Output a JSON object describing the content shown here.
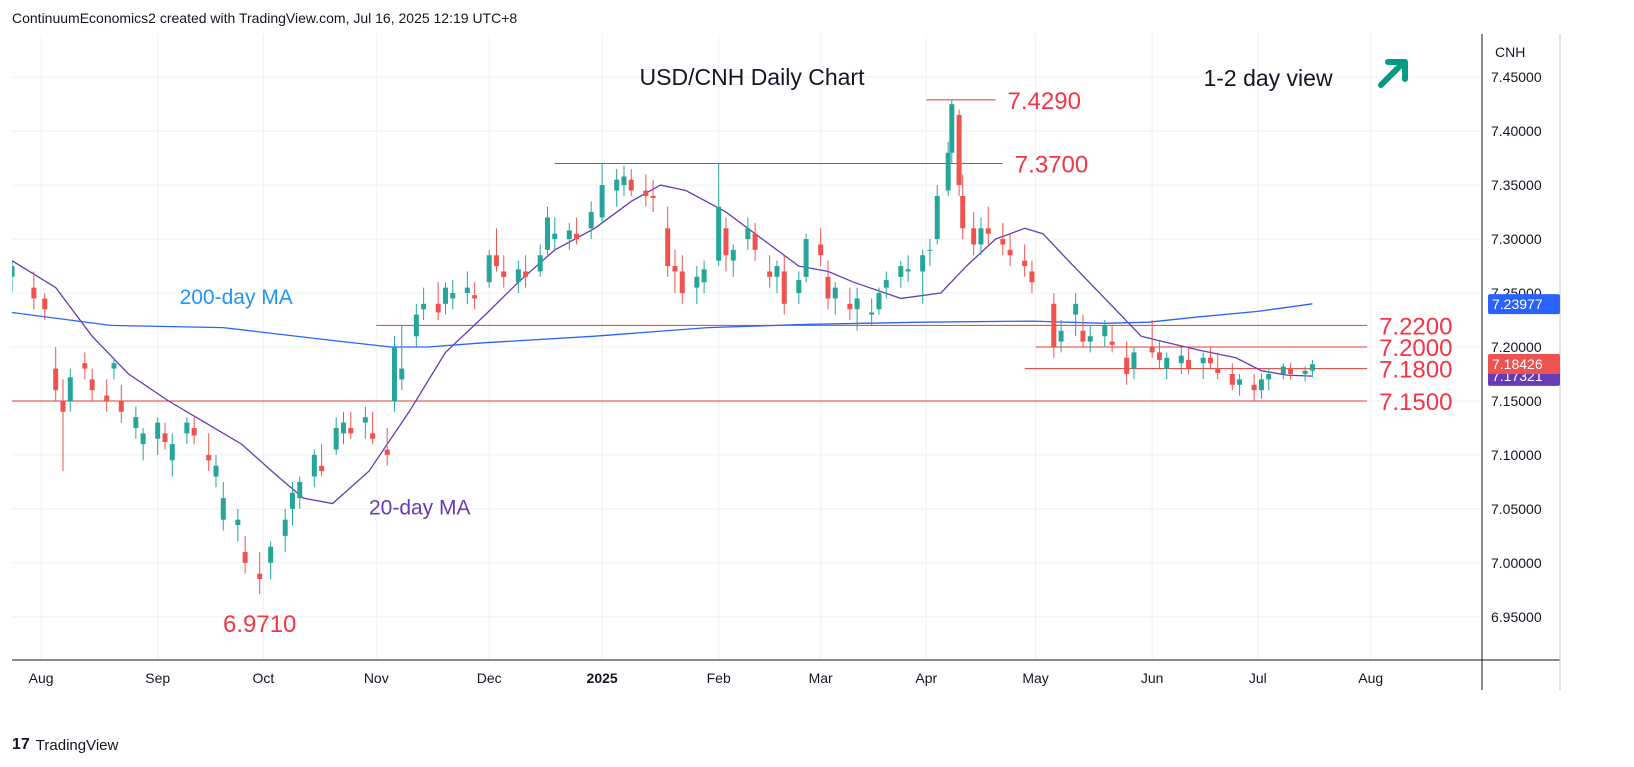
{
  "credit": "ContinuumEconomics2 created with TradingView.com, Jul 16, 2025 12:19 UTC+8",
  "brand": "TradingView",
  "brand_logo": "17",
  "colors": {
    "up": "#26a69a",
    "down": "#ef5350",
    "ma20": "#673ab7",
    "ma200": "#2962ff",
    "level": "#e53935",
    "label_red": "#f23645",
    "arrow": "#089981",
    "grid": "#eef0f3",
    "axis_text": "#131722"
  },
  "chart_data": {
    "type": "candlestick",
    "title": "USD/CNH Daily Chart",
    "view": "1-2 day view",
    "view_icon": "arrow-up-right-icon",
    "currency": "CNH",
    "price_tag_last": "7.18426",
    "price_tag_ma": "7.17321",
    "price_tag_ma200": "7.23977",
    "ylim": [
      6.91,
      7.49
    ],
    "y_ticks": [
      "7.45000",
      "7.40000",
      "7.35000",
      "7.30000",
      "7.25000",
      "7.20000",
      "7.15000",
      "7.10000",
      "7.05000",
      "7.00000",
      "6.95000"
    ],
    "x_start": "2024-07-24",
    "x_end": "2025-08-31",
    "x_ticks": [
      {
        "label": "Aug",
        "date": "2024-08-01",
        "bold": false
      },
      {
        "label": "Sep",
        "date": "2024-09-02",
        "bold": false
      },
      {
        "label": "Oct",
        "date": "2024-10-01",
        "bold": false
      },
      {
        "label": "Nov",
        "date": "2024-11-01",
        "bold": false
      },
      {
        "label": "Dec",
        "date": "2024-12-02",
        "bold": false
      },
      {
        "label": "2025",
        "date": "2025-01-02",
        "bold": true
      },
      {
        "label": "Feb",
        "date": "2025-02-03",
        "bold": false
      },
      {
        "label": "Mar",
        "date": "2025-03-03",
        "bold": false
      },
      {
        "label": "Apr",
        "date": "2025-04-01",
        "bold": false
      },
      {
        "label": "May",
        "date": "2025-05-01",
        "bold": false
      },
      {
        "label": "Jun",
        "date": "2025-06-02",
        "bold": false
      },
      {
        "label": "Jul",
        "date": "2025-07-01",
        "bold": false
      },
      {
        "label": "Aug",
        "date": "2025-08-01",
        "bold": false
      }
    ],
    "levels": [
      {
        "label": "7.4290",
        "value": 7.429,
        "from": "2025-04-01",
        "to": "2025-04-20"
      },
      {
        "label": "7.3700",
        "value": 7.37,
        "from": "2024-12-20",
        "to": "2025-04-22"
      },
      {
        "label": "7.2200",
        "value": 7.22,
        "from": "2024-11-01",
        "to": "2025-07-31"
      },
      {
        "label": "7.2000",
        "value": 7.2,
        "from": "2025-05-01",
        "to": "2025-07-31"
      },
      {
        "label": "7.1800",
        "value": 7.18,
        "from": "2025-04-28",
        "to": "2025-07-31"
      },
      {
        "label": "7.1500",
        "value": 7.15,
        "from": "2024-07-24",
        "to": "2025-07-31"
      }
    ],
    "point_labels": [
      {
        "label": "6.9710",
        "value": 6.971,
        "date": "2024-09-30"
      }
    ],
    "series": [
      {
        "name": "20-day MA",
        "points": [
          [
            "2024-07-24",
            7.28
          ],
          [
            "2024-08-05",
            7.255
          ],
          [
            "2024-08-15",
            7.21
          ],
          [
            "2024-08-25",
            7.175
          ],
          [
            "2024-09-05",
            7.15
          ],
          [
            "2024-09-15",
            7.13
          ],
          [
            "2024-09-25",
            7.11
          ],
          [
            "2024-10-05",
            7.08
          ],
          [
            "2024-10-12",
            7.06
          ],
          [
            "2024-10-20",
            7.055
          ],
          [
            "2024-10-30",
            7.085
          ],
          [
            "2024-11-10",
            7.14
          ],
          [
            "2024-11-20",
            7.195
          ],
          [
            "2024-12-01",
            7.23
          ],
          [
            "2024-12-10",
            7.26
          ],
          [
            "2024-12-20",
            7.29
          ],
          [
            "2024-12-31",
            7.31
          ],
          [
            "2025-01-10",
            7.335
          ],
          [
            "2025-01-18",
            7.35
          ],
          [
            "2025-01-25",
            7.345
          ],
          [
            "2025-02-05",
            7.325
          ],
          [
            "2025-02-15",
            7.3
          ],
          [
            "2025-02-25",
            7.275
          ],
          [
            "2025-03-05",
            7.27
          ],
          [
            "2025-03-12",
            7.26
          ],
          [
            "2025-03-25",
            7.245
          ],
          [
            "2025-04-05",
            7.25
          ],
          [
            "2025-04-12",
            7.275
          ],
          [
            "2025-04-20",
            7.3
          ],
          [
            "2025-04-28",
            7.31
          ],
          [
            "2025-05-03",
            7.305
          ],
          [
            "2025-05-10",
            7.28
          ],
          [
            "2025-05-20",
            7.245
          ],
          [
            "2025-05-30",
            7.21
          ],
          [
            "2025-06-05",
            7.205
          ],
          [
            "2025-06-15",
            7.197
          ],
          [
            "2025-06-25",
            7.19
          ],
          [
            "2025-07-02",
            7.178
          ],
          [
            "2025-07-09",
            7.174
          ],
          [
            "2025-07-16",
            7.173
          ]
        ]
      },
      {
        "name": "200-day MA",
        "points": [
          [
            "2024-07-24",
            7.232
          ],
          [
            "2024-08-20",
            7.22
          ],
          [
            "2024-09-20",
            7.218
          ],
          [
            "2024-10-20",
            7.206
          ],
          [
            "2024-11-05",
            7.2
          ],
          [
            "2024-11-15",
            7.2
          ],
          [
            "2024-12-01",
            7.204
          ],
          [
            "2024-12-31",
            7.21
          ],
          [
            "2025-01-31",
            7.218
          ],
          [
            "2025-02-28",
            7.221
          ],
          [
            "2025-03-31",
            7.223
          ],
          [
            "2025-04-30",
            7.224
          ],
          [
            "2025-05-20",
            7.222
          ],
          [
            "2025-06-01",
            7.223
          ],
          [
            "2025-06-15",
            7.228
          ],
          [
            "2025-07-01",
            7.233
          ],
          [
            "2025-07-16",
            7.24
          ]
        ]
      }
    ],
    "candles": [
      [
        "2024-07-24",
        7.265,
        7.28,
        7.25,
        7.275
      ],
      [
        "2024-07-30",
        7.255,
        7.27,
        7.235,
        7.245
      ],
      [
        "2024-08-02",
        7.245,
        7.25,
        7.225,
        7.235
      ],
      [
        "2024-08-05",
        7.18,
        7.2,
        7.15,
        7.16
      ],
      [
        "2024-08-07",
        7.15,
        7.17,
        7.085,
        7.14
      ],
      [
        "2024-08-09",
        7.15,
        7.18,
        7.14,
        7.172
      ],
      [
        "2024-08-13",
        7.185,
        7.195,
        7.17,
        7.18
      ],
      [
        "2024-08-15",
        7.17,
        7.18,
        7.15,
        7.16
      ],
      [
        "2024-08-19",
        7.155,
        7.17,
        7.14,
        7.15
      ],
      [
        "2024-08-21",
        7.18,
        7.19,
        7.17,
        7.185
      ],
      [
        "2024-08-23",
        7.15,
        7.165,
        7.13,
        7.14
      ],
      [
        "2024-08-27",
        7.125,
        7.145,
        7.115,
        7.135
      ],
      [
        "2024-08-29",
        7.11,
        7.125,
        7.095,
        7.12
      ],
      [
        "2024-09-02",
        7.115,
        7.135,
        7.1,
        7.13
      ],
      [
        "2024-09-04",
        7.12,
        7.13,
        7.105,
        7.112
      ],
      [
        "2024-09-06",
        7.095,
        7.12,
        7.08,
        7.11
      ],
      [
        "2024-09-10",
        7.12,
        7.135,
        7.11,
        7.13
      ],
      [
        "2024-09-12",
        7.125,
        7.135,
        7.11,
        7.118
      ],
      [
        "2024-09-16",
        7.1,
        7.12,
        7.085,
        7.095
      ],
      [
        "2024-09-18",
        7.08,
        7.1,
        7.07,
        7.09
      ],
      [
        "2024-09-20",
        7.04,
        7.075,
        7.03,
        7.06
      ],
      [
        "2024-09-24",
        7.035,
        7.05,
        7.02,
        7.04
      ],
      [
        "2024-09-26",
        7.01,
        7.025,
        6.99,
        7.0
      ],
      [
        "2024-09-30",
        6.99,
        7.01,
        6.971,
        6.985
      ],
      [
        "2024-10-03",
        7.0,
        7.02,
        6.985,
        7.015
      ],
      [
        "2024-10-07",
        7.025,
        7.05,
        7.01,
        7.04
      ],
      [
        "2024-10-09",
        7.05,
        7.075,
        7.035,
        7.065
      ],
      [
        "2024-10-11",
        7.06,
        7.08,
        7.05,
        7.075
      ],
      [
        "2024-10-15",
        7.08,
        7.105,
        7.07,
        7.1
      ],
      [
        "2024-10-17",
        7.09,
        7.11,
        7.08,
        7.085
      ],
      [
        "2024-10-21",
        7.105,
        7.135,
        7.1,
        7.125
      ],
      [
        "2024-10-23",
        7.12,
        7.14,
        7.11,
        7.13
      ],
      [
        "2024-10-25",
        7.125,
        7.14,
        7.115,
        7.12
      ],
      [
        "2024-10-29",
        7.13,
        7.145,
        7.115,
        7.135
      ],
      [
        "2024-10-31",
        7.12,
        7.14,
        7.11,
        7.115
      ],
      [
        "2024-11-04",
        7.105,
        7.125,
        7.09,
        7.1
      ],
      [
        "2024-11-06",
        7.15,
        7.21,
        7.14,
        7.2
      ],
      [
        "2024-11-08",
        7.17,
        7.22,
        7.16,
        7.18
      ],
      [
        "2024-11-12",
        7.21,
        7.24,
        7.2,
        7.23
      ],
      [
        "2024-11-14",
        7.235,
        7.255,
        7.225,
        7.24
      ],
      [
        "2024-11-18",
        7.24,
        7.26,
        7.225,
        7.232
      ],
      [
        "2024-11-20",
        7.24,
        7.26,
        7.23,
        7.255
      ],
      [
        "2024-11-22",
        7.245,
        7.262,
        7.235,
        7.25
      ],
      [
        "2024-11-26",
        7.25,
        7.27,
        7.24,
        7.255
      ],
      [
        "2024-11-28",
        7.248,
        7.26,
        7.235,
        7.245
      ],
      [
        "2024-12-02",
        7.26,
        7.29,
        7.255,
        7.285
      ],
      [
        "2024-12-04",
        7.285,
        7.31,
        7.27,
        7.275
      ],
      [
        "2024-12-06",
        7.27,
        7.285,
        7.255,
        7.265
      ],
      [
        "2024-12-10",
        7.26,
        7.28,
        7.25,
        7.272
      ],
      [
        "2024-12-12",
        7.27,
        7.285,
        7.255,
        7.265
      ],
      [
        "2024-12-16",
        7.27,
        7.295,
        7.265,
        7.285
      ],
      [
        "2024-12-18",
        7.29,
        7.33,
        7.285,
        7.32
      ],
      [
        "2024-12-20",
        7.3,
        7.32,
        7.29,
        7.305
      ],
      [
        "2024-12-24",
        7.3,
        7.315,
        7.29,
        7.308
      ],
      [
        "2024-12-26",
        7.305,
        7.32,
        7.295,
        7.3
      ],
      [
        "2024-12-30",
        7.31,
        7.335,
        7.3,
        7.325
      ],
      [
        "2025-01-02",
        7.32,
        7.37,
        7.315,
        7.35
      ],
      [
        "2025-01-06",
        7.345,
        7.365,
        7.33,
        7.355
      ],
      [
        "2025-01-08",
        7.35,
        7.368,
        7.34,
        7.358
      ],
      [
        "2025-01-10",
        7.355,
        7.365,
        7.34,
        7.345
      ],
      [
        "2025-01-14",
        7.345,
        7.36,
        7.33,
        7.34
      ],
      [
        "2025-01-16",
        7.34,
        7.355,
        7.325,
        7.338
      ],
      [
        "2025-01-20",
        7.31,
        7.33,
        7.265,
        7.275
      ],
      [
        "2025-01-22",
        7.275,
        7.29,
        7.25,
        7.27
      ],
      [
        "2025-01-24",
        7.27,
        7.285,
        7.24,
        7.25
      ],
      [
        "2025-01-28",
        7.255,
        7.275,
        7.24,
        7.265
      ],
      [
        "2025-01-30",
        7.26,
        7.28,
        7.25,
        7.272
      ],
      [
        "2025-02-03",
        7.28,
        7.37,
        7.275,
        7.33
      ],
      [
        "2025-02-05",
        7.31,
        7.32,
        7.27,
        7.285
      ],
      [
        "2025-02-07",
        7.28,
        7.295,
        7.265,
        7.29
      ],
      [
        "2025-02-11",
        7.3,
        7.32,
        7.29,
        7.31
      ],
      [
        "2025-02-13",
        7.305,
        7.315,
        7.28,
        7.29
      ],
      [
        "2025-02-17",
        7.27,
        7.285,
        7.255,
        7.265
      ],
      [
        "2025-02-19",
        7.265,
        7.28,
        7.25,
        7.275
      ],
      [
        "2025-02-21",
        7.27,
        7.285,
        7.23,
        7.24
      ],
      [
        "2025-02-25",
        7.25,
        7.27,
        7.24,
        7.262
      ],
      [
        "2025-02-27",
        7.265,
        7.305,
        7.26,
        7.3
      ],
      [
        "2025-03-03",
        7.295,
        7.31,
        7.275,
        7.285
      ],
      [
        "2025-03-05",
        7.265,
        7.28,
        7.235,
        7.245
      ],
      [
        "2025-03-07",
        7.245,
        7.26,
        7.23,
        7.255
      ],
      [
        "2025-03-11",
        7.24,
        7.255,
        7.225,
        7.235
      ],
      [
        "2025-03-13",
        7.235,
        7.255,
        7.215,
        7.245
      ],
      [
        "2025-03-17",
        7.23,
        7.245,
        7.22,
        7.232
      ],
      [
        "2025-03-19",
        7.235,
        7.255,
        7.23,
        7.25
      ],
      [
        "2025-03-21",
        7.255,
        7.27,
        7.245,
        7.262
      ],
      [
        "2025-03-25",
        7.265,
        7.28,
        7.255,
        7.275
      ],
      [
        "2025-03-27",
        7.27,
        7.285,
        7.26,
        7.272
      ],
      [
        "2025-03-31",
        7.27,
        7.29,
        7.24,
        7.285
      ],
      [
        "2025-04-02",
        7.29,
        7.3,
        7.275,
        7.29
      ],
      [
        "2025-04-04",
        7.3,
        7.35,
        7.295,
        7.34
      ],
      [
        "2025-04-07",
        7.345,
        7.39,
        7.34,
        7.38
      ],
      [
        "2025-04-08",
        7.38,
        7.429,
        7.37,
        7.425
      ],
      [
        "2025-04-10",
        7.415,
        7.42,
        7.34,
        7.35
      ],
      [
        "2025-04-11",
        7.34,
        7.36,
        7.3,
        7.31
      ],
      [
        "2025-04-14",
        7.31,
        7.325,
        7.285,
        7.295
      ],
      [
        "2025-04-16",
        7.295,
        7.32,
        7.285,
        7.31
      ],
      [
        "2025-04-18",
        7.31,
        7.33,
        7.295,
        7.305
      ],
      [
        "2025-04-22",
        7.3,
        7.315,
        7.285,
        7.295
      ],
      [
        "2025-04-24",
        7.29,
        7.305,
        7.275,
        7.285
      ],
      [
        "2025-04-28",
        7.28,
        7.295,
        7.265,
        7.275
      ],
      [
        "2025-04-30",
        7.27,
        7.28,
        7.25,
        7.26
      ],
      [
        "2025-05-06",
        7.24,
        7.25,
        7.19,
        7.2
      ],
      [
        "2025-05-08",
        7.205,
        7.225,
        7.195,
        7.215
      ],
      [
        "2025-05-12",
        7.23,
        7.25,
        7.21,
        7.24
      ],
      [
        "2025-05-14",
        7.215,
        7.23,
        7.2,
        7.205
      ],
      [
        "2025-05-16",
        7.205,
        7.22,
        7.195,
        7.21
      ],
      [
        "2025-05-20",
        7.21,
        7.225,
        7.2,
        7.22
      ],
      [
        "2025-05-22",
        7.205,
        7.22,
        7.195,
        7.202
      ],
      [
        "2025-05-26",
        7.19,
        7.205,
        7.165,
        7.175
      ],
      [
        "2025-05-28",
        7.18,
        7.2,
        7.17,
        7.195
      ],
      [
        "2025-06-02",
        7.2,
        7.225,
        7.19,
        7.195
      ],
      [
        "2025-06-04",
        7.195,
        7.205,
        7.18,
        7.188
      ],
      [
        "2025-06-06",
        7.18,
        7.195,
        7.17,
        7.19
      ],
      [
        "2025-06-10",
        7.185,
        7.2,
        7.175,
        7.192
      ],
      [
        "2025-06-12",
        7.188,
        7.2,
        7.175,
        7.18
      ],
      [
        "2025-06-16",
        7.185,
        7.195,
        7.17,
        7.19
      ],
      [
        "2025-06-18",
        7.19,
        7.2,
        7.18,
        7.185
      ],
      [
        "2025-06-20",
        7.18,
        7.195,
        7.17,
        7.176
      ],
      [
        "2025-06-24",
        7.175,
        7.185,
        7.16,
        7.165
      ],
      [
        "2025-06-26",
        7.165,
        7.175,
        7.155,
        7.17
      ],
      [
        "2025-06-30",
        7.165,
        7.175,
        7.15,
        7.16
      ],
      [
        "2025-07-02",
        7.16,
        7.175,
        7.152,
        7.17
      ],
      [
        "2025-07-04",
        7.17,
        7.18,
        7.16,
        7.175
      ],
      [
        "2025-07-08",
        7.175,
        7.185,
        7.17,
        7.182
      ],
      [
        "2025-07-10",
        7.18,
        7.185,
        7.17,
        7.175
      ],
      [
        "2025-07-14",
        7.175,
        7.182,
        7.168,
        7.178
      ],
      [
        "2025-07-16",
        7.178,
        7.188,
        7.172,
        7.184
      ]
    ]
  },
  "annotations": [
    {
      "text": "200-day MA",
      "color": "#2196f3",
      "date": "2024-09-08",
      "value": 7.24
    },
    {
      "text": "20-day MA",
      "color": "#673ab7",
      "date": "2024-10-30",
      "value": 7.045
    }
  ]
}
